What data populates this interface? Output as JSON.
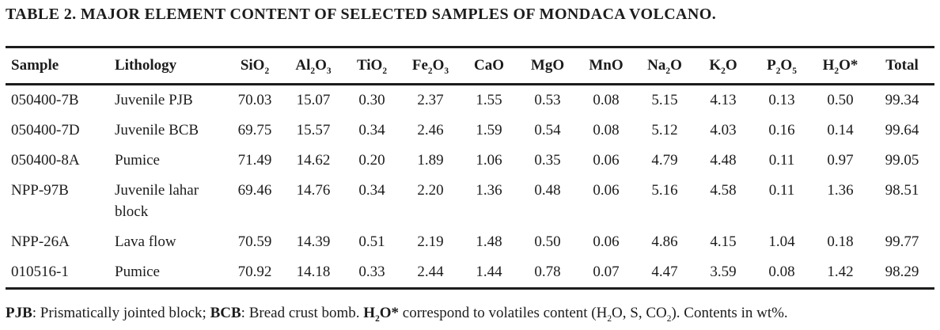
{
  "title": "TABLE 2. MAJOR ELEMENT CONTENT OF SELECTED SAMPLES OF MONDACA VOLCANO.",
  "table": {
    "columns": [
      {
        "label": "Sample",
        "align": "left"
      },
      {
        "label": "Lithology",
        "align": "left"
      },
      {
        "label": "SiO_2",
        "align": "num"
      },
      {
        "label": "Al_2O_3",
        "align": "num"
      },
      {
        "label": "TiO_2",
        "align": "num"
      },
      {
        "label": "Fe_2O_3",
        "align": "num"
      },
      {
        "label": "CaO",
        "align": "num"
      },
      {
        "label": "MgO",
        "align": "num"
      },
      {
        "label": "MnO",
        "align": "num"
      },
      {
        "label": "Na_2O",
        "align": "num"
      },
      {
        "label": "K_2O",
        "align": "num"
      },
      {
        "label": "P_2O_5",
        "align": "num"
      },
      {
        "label": "H_2O*",
        "align": "num"
      },
      {
        "label": "Total",
        "align": "num"
      }
    ],
    "rows": [
      [
        "050400-7B",
        "Juvenile PJB",
        "70.03",
        "15.07",
        "0.30",
        "2.37",
        "1.55",
        "0.53",
        "0.08",
        "5.15",
        "4.13",
        "0.13",
        "0.50",
        "99.34"
      ],
      [
        "050400-7D",
        "Juvenile BCB",
        "69.75",
        "15.57",
        "0.34",
        "2.46",
        "1.59",
        "0.54",
        "0.08",
        "5.12",
        "4.03",
        "0.16",
        "0.14",
        "99.64"
      ],
      [
        "050400-8A",
        "Pumice",
        "71.49",
        "14.62",
        "0.20",
        "1.89",
        "1.06",
        "0.35",
        "0.06",
        "4.79",
        "4.48",
        "0.11",
        "0.97",
        "99.05"
      ],
      [
        "NPP-97B",
        "Juvenile lahar block",
        "69.46",
        "14.76",
        "0.34",
        "2.20",
        "1.36",
        "0.48",
        "0.06",
        "5.16",
        "4.58",
        "0.11",
        "1.36",
        "98.51"
      ],
      [
        "NPP-26A",
        "Lava flow",
        "70.59",
        "14.39",
        "0.51",
        "2.19",
        "1.48",
        "0.50",
        "0.06",
        "4.86",
        "4.15",
        "1.04",
        "0.18",
        "99.77"
      ],
      [
        "010516-1",
        "Pumice",
        "70.92",
        "14.18",
        "0.33",
        "2.44",
        "1.44",
        "0.78",
        "0.07",
        "4.47",
        "3.59",
        "0.08",
        "1.42",
        "98.29"
      ]
    ]
  },
  "footnote": {
    "segments": [
      {
        "text": "PJB",
        "bold": true
      },
      {
        "text": ": Prismatically jointed block; ",
        "bold": false
      },
      {
        "text": "BCB",
        "bold": true
      },
      {
        "text": ": Bread crust bomb. ",
        "bold": false
      },
      {
        "text": "H_2O*",
        "bold": true
      },
      {
        "text": " correspond to volatiles content (H_2O, S, CO_2). Contents in wt%.",
        "bold": false
      }
    ]
  },
  "colors": {
    "text": "#1c1c1c",
    "background": "#ffffff",
    "rule": "#1c1c1c"
  }
}
